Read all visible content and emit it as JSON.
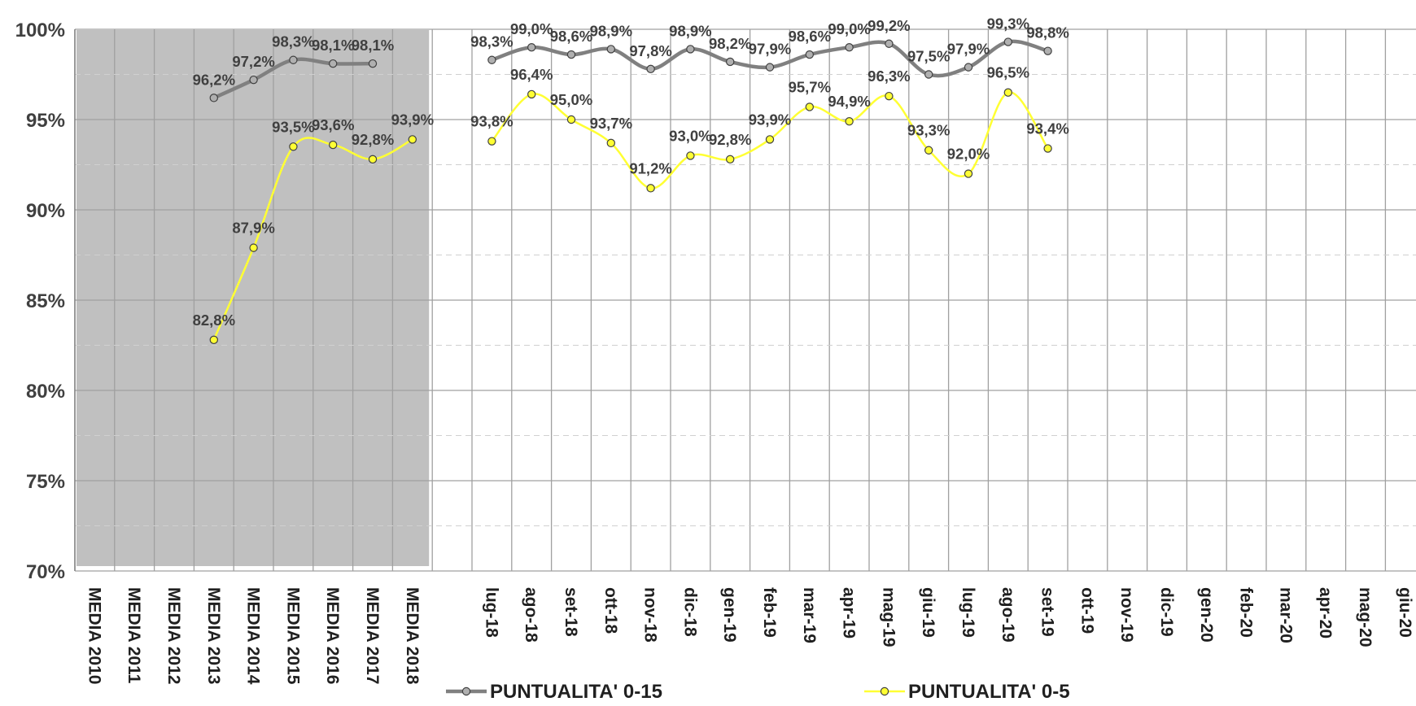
{
  "chart_data": {
    "type": "line",
    "title": "",
    "xlabel": "",
    "ylabel": "",
    "ylim": [
      70,
      100
    ],
    "yticks": [
      "100%",
      "95%",
      "90%",
      "85%",
      "80%",
      "75%",
      "70%"
    ],
    "grid": true,
    "shaded_region": {
      "from": "MEDIA 2010",
      "to": "MEDIA 2018",
      "color": "#c0c0c0"
    },
    "categories": [
      "MEDIA 2010",
      "MEDIA 2011",
      "MEDIA 2012",
      "MEDIA 2013",
      "MEDIA 2014",
      "MEDIA 2015",
      "MEDIA 2016",
      "MEDIA 2017",
      "MEDIA 2018",
      "",
      "lug-18",
      "ago-18",
      "set-18",
      "ott-18",
      "nov-18",
      "dic-18",
      "gen-19",
      "feb-19",
      "mar-19",
      "apr-19",
      "mag-19",
      "giu-19",
      "lug-19",
      "ago-19",
      "set-19",
      "ott-19",
      "nov-19",
      "dic-19",
      "gen-20",
      "feb-20",
      "mar-20",
      "apr-20",
      "mag-20",
      "giu-20"
    ],
    "series": [
      {
        "name": "PUNTUALITA' 0-15",
        "color": "#808080",
        "marker_fill": "#b0b0b0",
        "values": [
          null,
          null,
          null,
          96.2,
          97.2,
          98.3,
          98.1,
          98.1,
          null,
          null,
          98.3,
          99.0,
          98.6,
          98.9,
          97.8,
          98.9,
          98.2,
          97.9,
          98.6,
          99.0,
          99.2,
          97.5,
          97.9,
          99.3,
          98.8,
          null,
          null,
          null,
          null,
          null,
          null,
          null,
          null,
          null
        ],
        "labels": [
          null,
          null,
          null,
          "96,2%",
          "97,2%",
          "98,3%",
          "98,1%",
          "98,1%",
          null,
          null,
          "98,3%",
          "99,0%",
          "98,6%",
          "98,9%",
          "97,8%",
          "98,9%",
          "98,2%",
          "97,9%",
          "98,6%",
          "99,0%",
          "99,2%",
          "97,5%",
          "97,9%",
          "99,3%",
          "98,8%",
          null,
          null,
          null,
          null,
          null,
          null,
          null,
          null,
          null
        ]
      },
      {
        "name": "PUNTUALITA' 0-5",
        "color": "#ffff33",
        "marker_fill": "#ffff33",
        "values": [
          null,
          null,
          null,
          82.8,
          87.9,
          93.5,
          93.6,
          92.8,
          93.9,
          null,
          93.8,
          96.4,
          95.0,
          93.7,
          91.2,
          93.0,
          92.8,
          93.9,
          95.7,
          94.9,
          96.3,
          93.3,
          92.0,
          96.5,
          93.4,
          null,
          null,
          null,
          null,
          null,
          null,
          null,
          null,
          null
        ],
        "labels": [
          null,
          null,
          null,
          "82,8%",
          "87,9%",
          "93,5%",
          "93,6%",
          "92,8%",
          "93,9%",
          null,
          "93,8%",
          "96,4%",
          "95,0%",
          "93,7%",
          "91,2%",
          "93,0%",
          "92,8%",
          "93,9%",
          "95,7%",
          "94,9%",
          "96,3%",
          "93,3%",
          "92,0%",
          "96,5%",
          "93,4%",
          null,
          null,
          null,
          null,
          null,
          null,
          null,
          null,
          null
        ]
      }
    ],
    "legend": {
      "placement": "bottom"
    }
  }
}
